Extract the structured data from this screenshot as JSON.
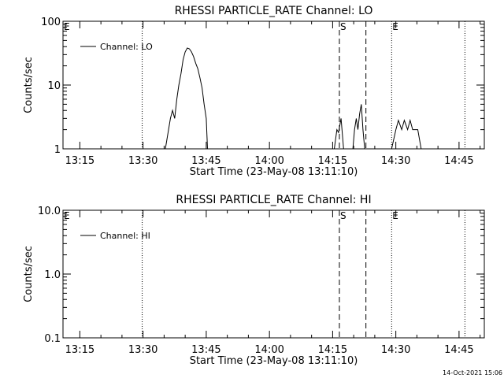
{
  "footer": {
    "timestamp": "14-Oct-2021 15:06"
  },
  "chart_data": [
    {
      "type": "line",
      "title": "RHESSI PARTICLE_RATE Channel: LO",
      "xlabel": "Start Time (23-May-08 13:11:10)",
      "ylabel": "Counts/sec",
      "yscale": "log",
      "xlim": [
        "13:11",
        "14:51"
      ],
      "ylim": [
        1,
        100
      ],
      "x_ticks": [
        "13:15",
        "13:30",
        "13:45",
        "14:00",
        "14:15",
        "14:30",
        "14:45"
      ],
      "y_ticks": [
        "1",
        "10",
        "100"
      ],
      "legend": {
        "position": "top-left",
        "entries": [
          "Channel: LO"
        ]
      },
      "markers": [
        {
          "label": "E",
          "time": "13:11",
          "style": "none"
        },
        {
          "label": "",
          "time": "13:29.8",
          "style": "dotted"
        },
        {
          "label": "S",
          "time": "14:16.6",
          "style": "dashed"
        },
        {
          "label": "",
          "time": "14:22.9",
          "style": "dashed"
        },
        {
          "label": "E",
          "time": "14:29",
          "style": "dotted"
        },
        {
          "label": "",
          "time": "14:46.4",
          "style": "dotted"
        }
      ],
      "series": [
        {
          "name": "Channel: LO",
          "segments": [
            [
              [
                "13:35.3",
                1
              ],
              [
                "13:36.5",
                3
              ],
              [
                "13:37.0",
                4
              ],
              [
                "13:37.5",
                3
              ],
              [
                "13:38.0",
                6
              ],
              [
                "13:38.5",
                10
              ],
              [
                "13:39.0",
                15
              ],
              [
                "13:39.5",
                25
              ],
              [
                "13:40.0",
                33
              ],
              [
                "13:40.5",
                38
              ],
              [
                "13:41.0",
                37
              ],
              [
                "13:41.5",
                33
              ],
              [
                "13:42.0",
                28
              ],
              [
                "13:42.5",
                22
              ],
              [
                "13:43.0",
                18
              ],
              [
                "13:43.5",
                13
              ],
              [
                "13:44.0",
                9
              ],
              [
                "13:44.5",
                5
              ],
              [
                "13:45.0",
                3
              ],
              [
                "13:45.3",
                1
              ]
            ],
            [
              [
                "14:15.4",
                1
              ],
              [
                "14:16.0",
                2
              ],
              [
                "14:16.4",
                1.8
              ],
              [
                "14:17.0",
                3
              ],
              [
                "14:17.6",
                1
              ]
            ],
            [
              [
                "14:19.8",
                1
              ],
              [
                "14:20.2",
                2
              ],
              [
                "14:20.6",
                3
              ],
              [
                "14:21.0",
                2
              ],
              [
                "14:21.4",
                3.5
              ],
              [
                "14:21.8",
                5
              ],
              [
                "14:22.2",
                2
              ],
              [
                "14:22.6",
                1
              ]
            ],
            [
              [
                "14:29.0",
                1
              ],
              [
                "14:30.0",
                2
              ],
              [
                "14:30.6",
                2.8
              ],
              [
                "14:31.4",
                2
              ],
              [
                "14:32.0",
                2.8
              ],
              [
                "14:32.8",
                2
              ],
              [
                "14:33.4",
                2.8
              ],
              [
                "14:34.0",
                2
              ],
              [
                "14:35.2",
                2
              ],
              [
                "14:36.0",
                1
              ]
            ]
          ]
        }
      ]
    },
    {
      "type": "line",
      "title": "RHESSI PARTICLE_RATE Channel: HI",
      "xlabel": "Start Time (23-May-08 13:11:10)",
      "ylabel": "Counts/sec",
      "yscale": "log",
      "xlim": [
        "13:11",
        "14:51"
      ],
      "ylim": [
        0.1,
        10
      ],
      "x_ticks": [
        "13:15",
        "13:30",
        "13:45",
        "14:00",
        "14:15",
        "14:30",
        "14:45"
      ],
      "y_ticks": [
        "0.1",
        "1.0",
        "10.0"
      ],
      "legend": {
        "position": "top-left",
        "entries": [
          "Channel: HI"
        ]
      },
      "markers": [
        {
          "label": "E",
          "time": "13:11",
          "style": "none"
        },
        {
          "label": "",
          "time": "13:29.8",
          "style": "dotted"
        },
        {
          "label": "S",
          "time": "14:16.6",
          "style": "dashed"
        },
        {
          "label": "",
          "time": "14:22.9",
          "style": "dashed"
        },
        {
          "label": "E",
          "time": "14:29",
          "style": "dotted"
        },
        {
          "label": "",
          "time": "14:46.4",
          "style": "dotted"
        }
      ],
      "series": [
        {
          "name": "Channel: HI",
          "segments": []
        }
      ]
    }
  ]
}
